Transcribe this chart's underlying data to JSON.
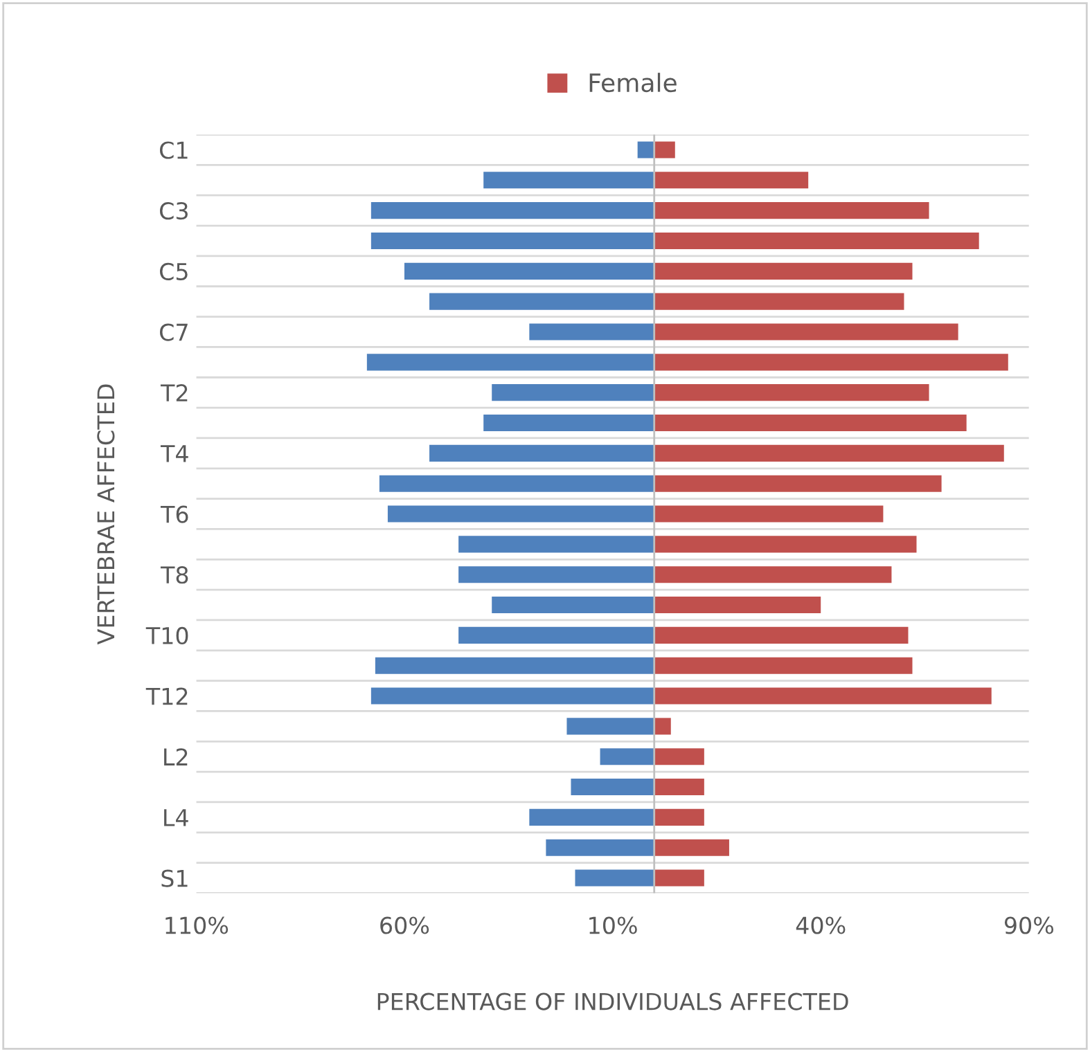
{
  "chart_data": {
    "type": "bar",
    "orientation": "horizontal",
    "xlabel": "PERCENTAGE OF INDIVIDUALS AFFECTED",
    "ylabel": "VERTEBRAE AFFECTED",
    "categories": [
      "C1",
      null,
      "C3",
      null,
      "C5",
      null,
      "C7",
      null,
      "T2",
      null,
      "T4",
      null,
      "T6",
      null,
      "T8",
      null,
      "T10",
      null,
      "T12",
      null,
      "L2",
      null,
      "L4",
      null,
      "S1"
    ],
    "series": [
      {
        "color": "#4f81bd",
        "values": [
          -4,
          -41,
          -68,
          -68,
          -60,
          -54,
          -30,
          -69,
          -39,
          -41,
          -54,
          -66,
          -64,
          -47,
          -47,
          -39,
          -47,
          -67,
          -68,
          -21,
          -13,
          -20,
          -30,
          -26,
          -19
        ]
      },
      {
        "name": "Female",
        "color": "#c0504d",
        "values": [
          5,
          37,
          66,
          78,
          62,
          60,
          73,
          85,
          66,
          75,
          84,
          69,
          55,
          63,
          57,
          40,
          61,
          62,
          81,
          4,
          12,
          12,
          12,
          18,
          12
        ]
      }
    ],
    "xlim": [
      -110,
      90
    ],
    "xticks": [
      {
        "value": -110,
        "label": "110%"
      },
      {
        "value": -60,
        "label": "60%"
      },
      {
        "value": -10,
        "label": "10%"
      },
      {
        "value": 40,
        "label": "40%"
      },
      {
        "value": 90,
        "label": "90%"
      }
    ],
    "grid": "y",
    "legend": "top",
    "stacked": true
  }
}
